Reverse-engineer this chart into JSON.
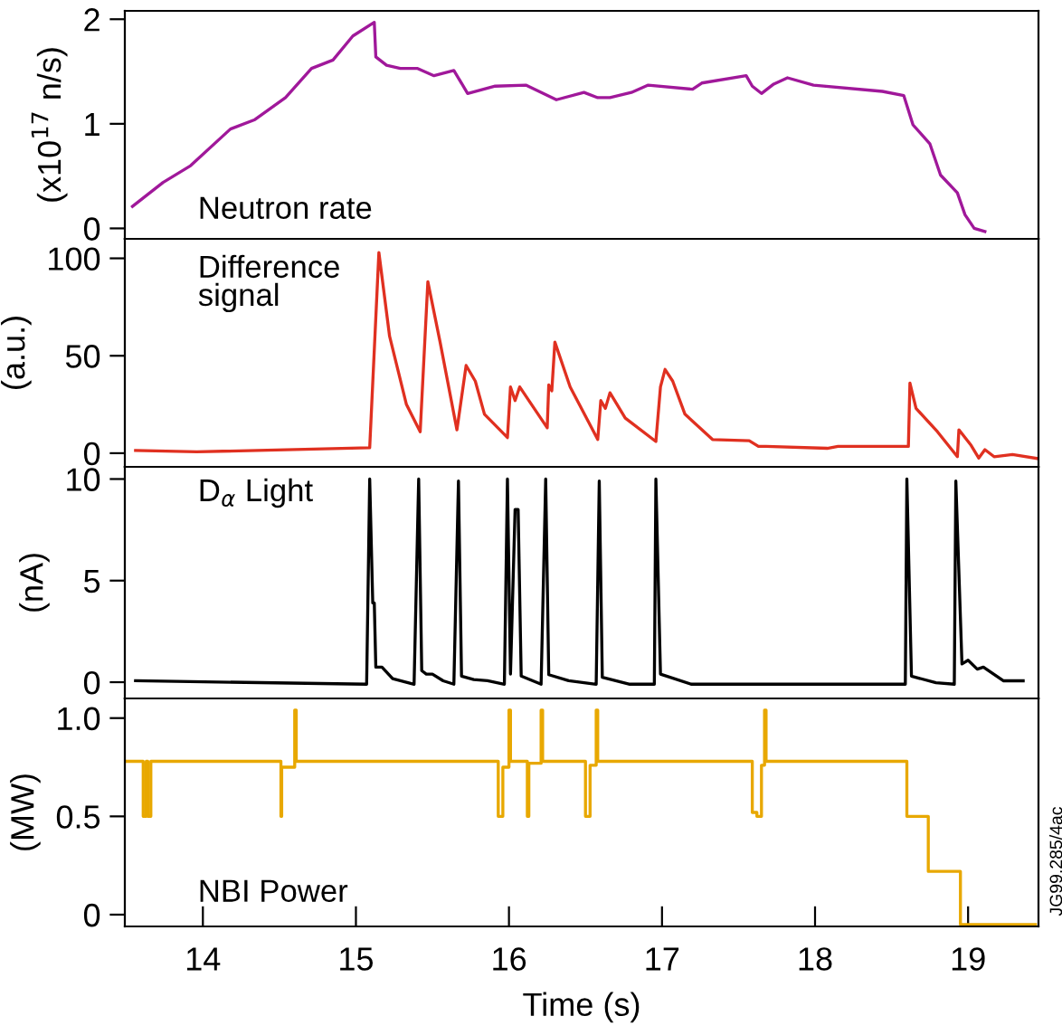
{
  "chart_data": [
    {
      "type": "line",
      "ylabel": "(x10$^{17}$ n/s)",
      "annotations": [
        "Neutron rate"
      ],
      "xlim": [
        13.49,
        19.46
      ],
      "ylim": [
        -0.1,
        2.08
      ],
      "yticks": [
        0,
        1,
        2
      ],
      "tick_labels": "y",
      "grid": false,
      "legend": false,
      "series": [
        {
          "color": "#a0189a",
          "x": [
            13.54,
            13.74,
            13.92,
            14.18,
            14.34,
            14.54,
            14.71,
            14.85,
            14.98,
            15.12,
            15.13,
            15.2,
            15.29,
            15.4,
            15.51,
            15.64,
            15.73,
            15.91,
            16.11,
            16.31,
            16.49,
            16.58,
            16.66,
            16.8,
            16.91,
            17.2,
            17.26,
            17.55,
            17.59,
            17.65,
            17.73,
            17.82,
            17.99,
            18.44,
            18.58,
            18.64,
            18.75,
            18.82,
            18.93,
            18.98,
            19.04,
            19.11
          ],
          "values": [
            0.21,
            0.44,
            0.6,
            0.95,
            1.04,
            1.25,
            1.53,
            1.61,
            1.84,
            1.97,
            1.64,
            1.56,
            1.53,
            1.53,
            1.46,
            1.51,
            1.29,
            1.36,
            1.37,
            1.23,
            1.3,
            1.25,
            1.25,
            1.3,
            1.37,
            1.33,
            1.39,
            1.46,
            1.36,
            1.29,
            1.38,
            1.44,
            1.37,
            1.31,
            1.27,
            0.99,
            0.81,
            0.51,
            0.34,
            0.13,
            0.0,
            -0.03
          ]
        }
      ]
    },
    {
      "type": "line",
      "ylabel": "(a.u.)",
      "annotations": [
        "Difference\nsignal"
      ],
      "xlim": [
        13.49,
        19.46
      ],
      "ylim": [
        -7,
        110
      ],
      "yticks": [
        0,
        50,
        100
      ],
      "tick_labels": "y",
      "grid": false,
      "legend": false,
      "series": [
        {
          "color": "#e03020",
          "x": [
            13.56,
            13.96,
            15.09,
            15.15,
            15.22,
            15.33,
            15.42,
            15.47,
            15.55,
            15.66,
            15.72,
            15.78,
            15.84,
            15.99,
            16.01,
            16.04,
            16.07,
            16.25,
            16.26,
            16.28,
            16.3,
            16.4,
            16.58,
            16.6,
            16.63,
            16.66,
            16.76,
            16.96,
            16.99,
            17.02,
            17.07,
            17.15,
            17.33,
            17.57,
            17.63,
            17.68,
            18.08,
            18.15,
            18.61,
            18.62,
            18.66,
            18.8,
            18.93,
            18.94,
            19.02,
            19.07,
            19.11,
            19.17,
            19.29,
            19.46
          ],
          "values": [
            1.4,
            0.7,
            2.8,
            103,
            60,
            25,
            11,
            88,
            57,
            12,
            45,
            37,
            20,
            8,
            34,
            27,
            34,
            13,
            35,
            32,
            57,
            34,
            7,
            27,
            23,
            31,
            18,
            6,
            34,
            43,
            37,
            20,
            7,
            6.4,
            3.5,
            3.5,
            2.5,
            3.5,
            3.5,
            36,
            23,
            11,
            -1.8,
            12,
            4,
            -2.5,
            1.8,
            -1.8,
            -0.7,
            -2.8
          ]
        }
      ]
    },
    {
      "type": "line",
      "ylabel": "(nA)",
      "annotations": [
        "D$_{α}$ Light"
      ],
      "xlim": [
        13.49,
        19.46
      ],
      "ylim": [
        -0.8,
        10.6
      ],
      "yticks": [
        0,
        5,
        10
      ],
      "tick_labels": "y",
      "grid": false,
      "legend": false,
      "series": [
        {
          "color": "#000000",
          "x": [
            13.56,
            15.07,
            15.09,
            15.11,
            15.12,
            15.13,
            15.17,
            15.24,
            15.38,
            15.41,
            15.43,
            15.46,
            15.5,
            15.57,
            15.64,
            15.67,
            15.69,
            15.77,
            15.86,
            15.97,
            15.99,
            16.01,
            16.04,
            16.06,
            16.08,
            16.21,
            16.24,
            16.26,
            16.39,
            16.57,
            16.59,
            16.61,
            16.79,
            16.95,
            16.96,
            16.99,
            17.19,
            18.59,
            18.6,
            18.63,
            18.79,
            18.91,
            18.92,
            18.96,
            19.0,
            19.06,
            19.1,
            19.23,
            19.36
          ],
          "values": [
            0.07,
            -0.1,
            10,
            3.9,
            3.9,
            0.74,
            0.74,
            0.17,
            -0.1,
            10,
            0.57,
            0.4,
            0.4,
            0.07,
            -0.1,
            9.9,
            0.3,
            0.13,
            0.07,
            -0.1,
            10,
            0.4,
            8.5,
            8.5,
            0.3,
            -0.1,
            10,
            0.37,
            0.07,
            -0.1,
            9.9,
            0.24,
            -0.1,
            -0.1,
            10,
            0.4,
            -0.1,
            -0.1,
            10,
            0.3,
            -0.03,
            -0.1,
            9.9,
            0.9,
            1.08,
            0.64,
            0.74,
            0.07,
            0.07
          ]
        }
      ]
    },
    {
      "type": "step",
      "xlabel": "Time (s)",
      "ylabel": "(MW)",
      "annotations": [
        "NBI Power",
        "JG99.285/4ac"
      ],
      "xlim": [
        13.49,
        19.46
      ],
      "xticks": [
        14,
        15,
        16,
        17,
        18,
        19
      ],
      "ylim": [
        -0.06,
        1.1
      ],
      "yticks": [
        0,
        0.5,
        {
          "value": 1.0,
          "label": "1.0"
        }
      ],
      "grid": false,
      "legend": false,
      "series": [
        {
          "color": "#e8a800",
          "x": [
            13.49,
            13.61,
            13.63,
            13.64,
            13.66,
            14.51,
            14.515,
            14.6,
            14.61,
            15.93,
            15.96,
            16.0,
            16.01,
            16.12,
            16.13,
            16.21,
            16.22,
            16.5,
            16.53,
            16.57,
            16.58,
            17.59,
            17.62,
            17.65,
            17.67,
            17.68,
            18.6,
            18.74,
            18.95,
            19.44
          ],
          "values": [
            0.78,
            0.5,
            0.78,
            0.5,
            0.78,
            0.5,
            0.75,
            1.04,
            0.78,
            0.5,
            0.75,
            1.04,
            0.78,
            0.5,
            0.77,
            1.04,
            0.78,
            0.5,
            0.76,
            1.04,
            0.78,
            0.52,
            0.5,
            0.76,
            1.04,
            0.78,
            0.5,
            0.22,
            -0.05,
            -0.05
          ]
        }
      ]
    }
  ]
}
